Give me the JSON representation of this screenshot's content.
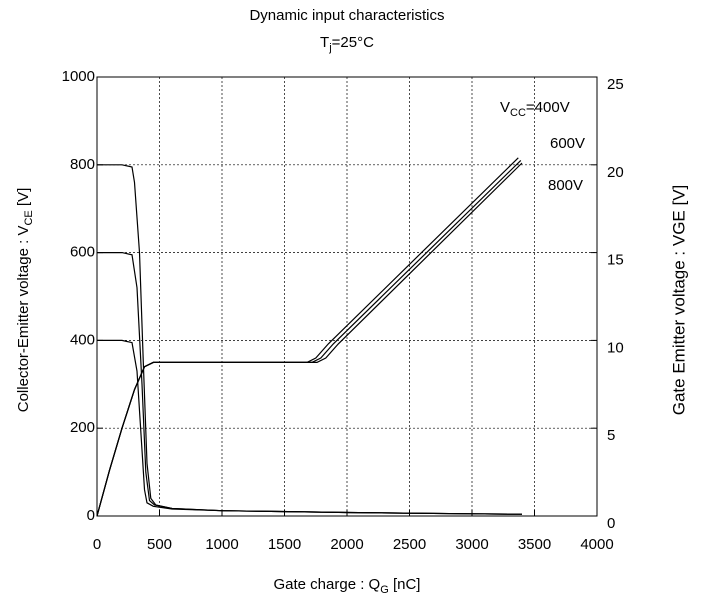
{
  "chart_data": {
    "type": "line",
    "title": "Dynamic input characteristics",
    "subtitle": [
      "T",
      "j",
      "=25°C"
    ],
    "xlabel": [
      "Gate charge  :  Q",
      "G",
      "  [nC]"
    ],
    "ylabel": [
      "Collector-Emitter voltage : V",
      "CE",
      "   [V]"
    ],
    "y2label": "Gate Emitter voltage : VGE [V]",
    "annotations": [
      [
        "V",
        "CC",
        "=400V"
      ],
      [
        "600V"
      ],
      [
        "800V"
      ]
    ],
    "xlim": [
      0,
      4000
    ],
    "xticks": [
      0,
      500,
      1000,
      1500,
      2000,
      2500,
      3000,
      3500,
      4000
    ],
    "ylim": [
      0,
      1000
    ],
    "yticks": [
      0,
      200,
      400,
      600,
      800,
      1000
    ],
    "y2lim": [
      0,
      25
    ],
    "y2ticks": [
      0,
      5,
      10,
      15,
      20,
      25
    ],
    "grid": true,
    "series": [
      {
        "color": "#000000",
        "x": [
          0,
          100,
          200,
          280,
          320,
          360,
          380,
          400,
          450,
          600,
          1000,
          2000,
          3000,
          3400
        ],
        "values": [
          400,
          400,
          400,
          395,
          330,
          150,
          60,
          30,
          22,
          16,
          12,
          8,
          5,
          4
        ]
      },
      {
        "color": "#000000",
        "x": [
          0,
          100,
          200,
          280,
          320,
          360,
          390,
          420,
          460,
          600,
          1000,
          2000,
          3000,
          3400
        ],
        "values": [
          600,
          600,
          600,
          595,
          520,
          300,
          100,
          35,
          25,
          17,
          12,
          8,
          5,
          4
        ]
      },
      {
        "color": "#000000",
        "x": [
          0,
          100,
          200,
          280,
          300,
          340,
          370,
          400,
          430,
          470,
          600,
          1000,
          2000,
          3000,
          3400
        ],
        "values": [
          800,
          800,
          800,
          795,
          760,
          600,
          350,
          120,
          40,
          25,
          17,
          12,
          8,
          5,
          4
        ]
      },
      {
        "color": "#000000",
        "axis": "y2",
        "x": [
          0,
          100,
          200,
          300,
          380,
          450,
          600,
          1680,
          1750,
          1850,
          3370
        ],
        "values": [
          0,
          2.6,
          5.0,
          7.2,
          8.5,
          8.75,
          8.75,
          8.75,
          9.0,
          9.8,
          20.4
        ]
      },
      {
        "color": "#000000",
        "axis": "y2",
        "x": [
          0,
          100,
          200,
          300,
          380,
          450,
          600,
          1720,
          1790,
          1890,
          3390
        ],
        "values": [
          0,
          2.6,
          5.0,
          7.2,
          8.5,
          8.75,
          8.75,
          8.75,
          9.0,
          9.8,
          20.25
        ]
      },
      {
        "color": "#000000",
        "axis": "y2",
        "x": [
          0,
          100,
          200,
          300,
          380,
          450,
          600,
          1760,
          1830,
          1930,
          3400
        ],
        "values": [
          0,
          2.6,
          5.0,
          7.2,
          8.5,
          8.75,
          8.75,
          8.75,
          9.0,
          9.8,
          20.1
        ]
      }
    ]
  }
}
